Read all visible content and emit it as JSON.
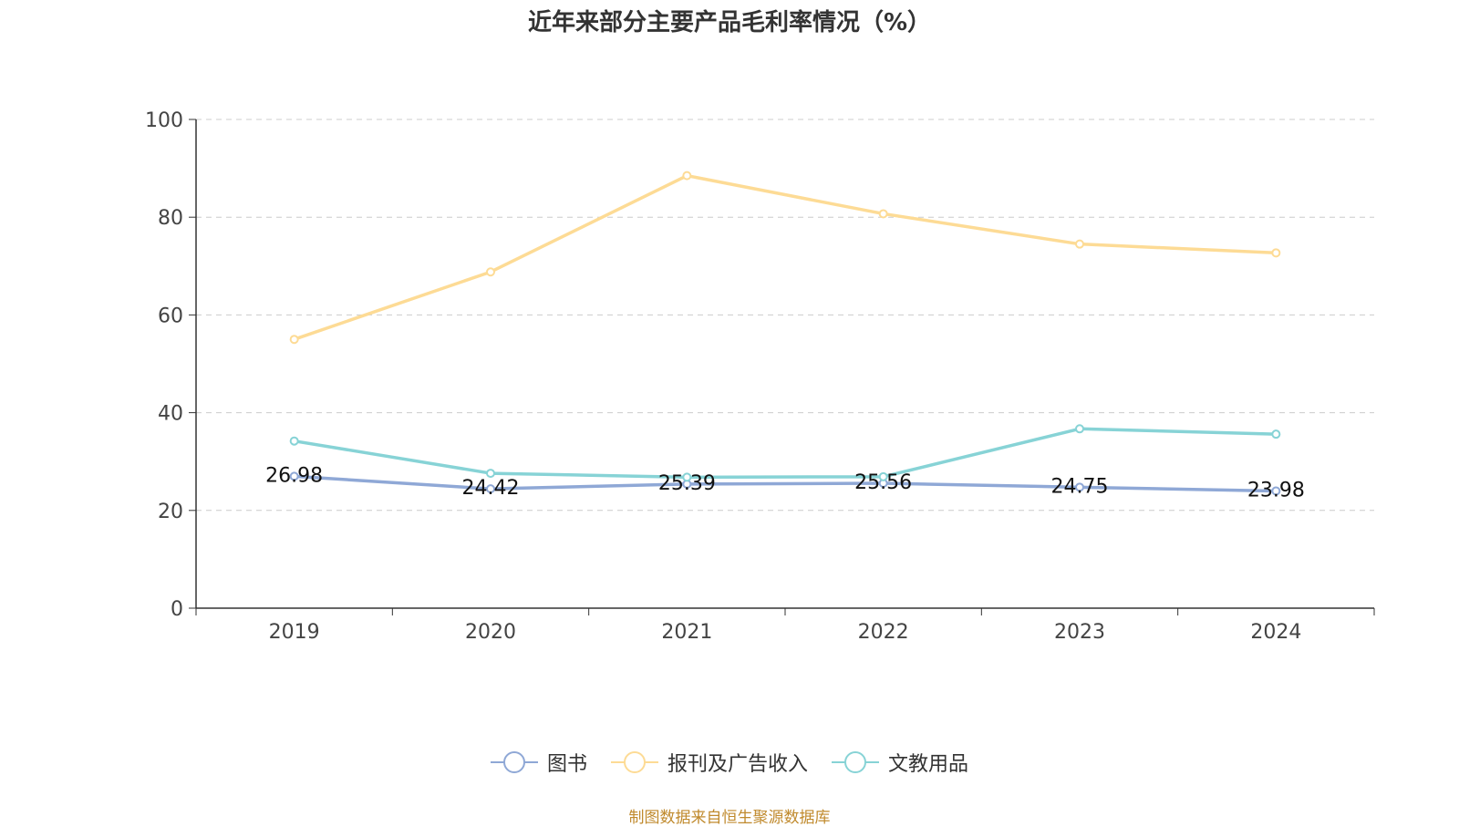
{
  "chart_data": {
    "type": "line",
    "title": "近年来部分主要产品毛利率情况（%）",
    "categories": [
      "2019",
      "2020",
      "2021",
      "2022",
      "2023",
      "2024"
    ],
    "ylim": [
      0,
      100
    ],
    "yticks": [
      0,
      20,
      40,
      60,
      80,
      100
    ],
    "grid": true,
    "legend_position": "bottom",
    "series": [
      {
        "name": "图书",
        "color": "#8fa8d6",
        "values": [
          26.98,
          24.42,
          25.39,
          25.56,
          24.75,
          23.98
        ],
        "labels": [
          "26.98",
          "24.42",
          "25.39",
          "25.56",
          "24.75",
          "23.98"
        ]
      },
      {
        "name": "报刊及广告收入",
        "color": "#fddb95",
        "values": [
          55.0,
          68.8,
          88.5,
          80.7,
          74.5,
          72.7
        ]
      },
      {
        "name": "文教用品",
        "color": "#87d3d6",
        "values": [
          34.2,
          27.6,
          26.8,
          26.9,
          36.7,
          35.6
        ]
      }
    ]
  },
  "source_note": "制图数据来自恒生聚源数据库"
}
